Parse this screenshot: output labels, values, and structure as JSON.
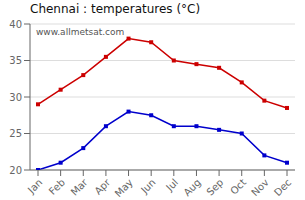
{
  "chart_data": {
    "type": "line",
    "title": "Chennai : temperatures (°C)",
    "annotations": [
      "www.allmetsat.com"
    ],
    "categories": [
      "Jan",
      "Feb",
      "Mar",
      "Apr",
      "May",
      "Jun",
      "Jul",
      "Aug",
      "Sep",
      "Oct",
      "Nov",
      "Dec"
    ],
    "series": [
      {
        "color": "#cc0000",
        "marker": "square",
        "values": [
          29,
          31,
          33,
          35.5,
          38,
          37.5,
          35,
          34.5,
          34,
          32,
          29.5,
          28.5
        ]
      },
      {
        "color": "#0000cc",
        "marker": "square",
        "values": [
          20,
          21,
          23,
          26,
          28,
          27.5,
          26,
          26,
          25.5,
          25,
          22,
          21
        ]
      }
    ],
    "ylim": [
      20,
      40
    ],
    "yticks": [
      20,
      25,
      30,
      35,
      40
    ],
    "grid": true
  }
}
